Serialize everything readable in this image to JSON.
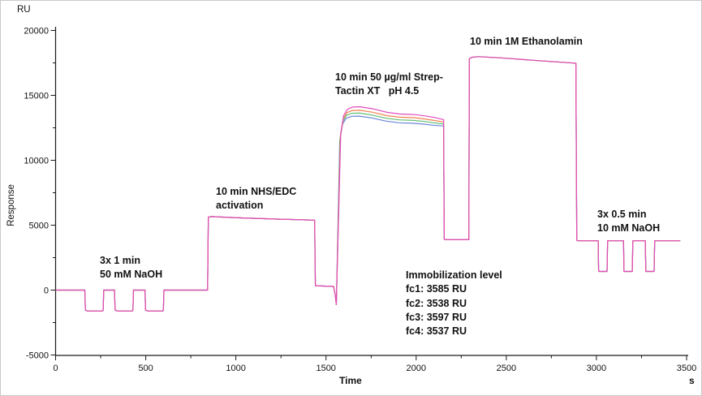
{
  "chart_data": {
    "type": "line",
    "title": "",
    "xlabel": "Time",
    "x_unit": "s",
    "ylabel": "Response",
    "y_unit": "RU",
    "xlim": [
      0,
      3500
    ],
    "ylim": [
      -5000,
      20000
    ],
    "x_ticks": [
      0,
      500,
      1000,
      1500,
      2000,
      2500,
      3000,
      3500
    ],
    "x_minor_step": 250,
    "y_ticks": [
      -5000,
      0,
      5000,
      10000,
      15000,
      20000
    ],
    "y_minor_step": 2500,
    "grid": false,
    "legend_position": "none",
    "axis_color": "#1a1a1a",
    "description": "SPR immobilization sensorgram; four flow-cell curves overlap except during the Strep-Tactin XT capture plateau",
    "common_points_pre": [
      [
        0,
        0
      ],
      [
        162,
        0
      ],
      [
        165,
        -1540
      ],
      [
        178,
        -1610
      ],
      [
        260,
        -1610
      ],
      [
        264,
        -1560
      ],
      [
        267,
        0
      ],
      [
        327,
        0
      ],
      [
        330,
        -1540
      ],
      [
        343,
        -1610
      ],
      [
        425,
        -1610
      ],
      [
        429,
        -1560
      ],
      [
        432,
        0
      ],
      [
        496,
        0
      ],
      [
        499,
        -1540
      ],
      [
        512,
        -1610
      ],
      [
        594,
        -1610
      ],
      [
        598,
        -1560
      ],
      [
        601,
        0
      ],
      [
        843,
        0
      ],
      [
        847,
        5620
      ],
      [
        862,
        5660
      ],
      [
        1010,
        5570
      ],
      [
        1230,
        5470
      ],
      [
        1437,
        5390
      ],
      [
        1441,
        340
      ],
      [
        1470,
        320
      ],
      [
        1542,
        280
      ],
      [
        1551,
        -350
      ],
      [
        1557,
        -1120
      ]
    ],
    "common_points_post": [
      [
        2156,
        3920
      ],
      [
        2159,
        3880
      ],
      [
        2292,
        3880
      ],
      [
        2295,
        17820
      ],
      [
        2308,
        17930
      ],
      [
        2345,
        17980
      ],
      [
        2470,
        17890
      ],
      [
        2650,
        17700
      ],
      [
        2881,
        17480
      ],
      [
        2886,
        17470
      ],
      [
        2891,
        3830
      ],
      [
        2898,
        3800
      ],
      [
        3010,
        3800
      ],
      [
        3012,
        1470
      ],
      [
        3015,
        1440
      ],
      [
        3059,
        1440
      ],
      [
        3062,
        3800
      ],
      [
        3150,
        3800
      ],
      [
        3153,
        1440
      ],
      [
        3199,
        1440
      ],
      [
        3202,
        3800
      ],
      [
        3271,
        3800
      ],
      [
        3274,
        1440
      ],
      [
        3320,
        1440
      ],
      [
        3323,
        3800
      ],
      [
        3465,
        3800
      ]
    ],
    "series": [
      {
        "name": "series-blue",
        "color": "#6b86d8",
        "plateau_points": [
          [
            1576,
            11500
          ],
          [
            1592,
            12800
          ],
          [
            1612,
            13230
          ],
          [
            1642,
            13390
          ],
          [
            1684,
            13400
          ],
          [
            1754,
            13260
          ],
          [
            1834,
            13010
          ],
          [
            1904,
            12890
          ],
          [
            1984,
            12850
          ],
          [
            2044,
            12780
          ],
          [
            2094,
            12700
          ],
          [
            2152,
            12640
          ]
        ]
      },
      {
        "name": "series-green",
        "color": "#63bd74",
        "plateau_points": [
          [
            1578,
            11700
          ],
          [
            1594,
            13000
          ],
          [
            1614,
            13460
          ],
          [
            1644,
            13620
          ],
          [
            1686,
            13630
          ],
          [
            1756,
            13480
          ],
          [
            1836,
            13230
          ],
          [
            1906,
            13110
          ],
          [
            1986,
            13070
          ],
          [
            2046,
            12990
          ],
          [
            2096,
            12890
          ],
          [
            2152,
            12790
          ]
        ]
      },
      {
        "name": "series-orange",
        "color": "#f0824f",
        "plateau_points": [
          [
            1580,
            11900
          ],
          [
            1596,
            13200
          ],
          [
            1616,
            13670
          ],
          [
            1646,
            13840
          ],
          [
            1688,
            13850
          ],
          [
            1758,
            13700
          ],
          [
            1838,
            13440
          ],
          [
            1908,
            13320
          ],
          [
            1988,
            13280
          ],
          [
            2048,
            13180
          ],
          [
            2098,
            13070
          ],
          [
            2152,
            12950
          ]
        ]
      },
      {
        "name": "series-pink",
        "color": "#e24cbe",
        "plateau_points": [
          [
            1582,
            12100
          ],
          [
            1598,
            13450
          ],
          [
            1618,
            13920
          ],
          [
            1648,
            14100
          ],
          [
            1690,
            14120
          ],
          [
            1760,
            13960
          ],
          [
            1840,
            13690
          ],
          [
            1910,
            13560
          ],
          [
            1990,
            13520
          ],
          [
            2050,
            13420
          ],
          [
            2100,
            13300
          ],
          [
            2152,
            13130
          ]
        ]
      }
    ],
    "annotations": [
      {
        "id": "naoh-1",
        "text": "3x 1 min\n50 mM NaOH",
        "t": 246,
        "ru": 2780
      },
      {
        "id": "nhs-edc",
        "text": "10 min NHS/EDC\nactivation",
        "t": 887,
        "ru": 8100
      },
      {
        "id": "strep-tactin",
        "text": "10 min 50 µg/ml Strep-\nTactin XT   pH 4.5",
        "t": 1553,
        "ru": 16900
      },
      {
        "id": "ethanolamine",
        "text": "10 min 1M Ethanolamin",
        "t": 2300,
        "ru": 19650
      },
      {
        "id": "naoh-2",
        "text": "3x 0.5 min\n10 mM NaOH",
        "t": 3004,
        "ru": 6350
      },
      {
        "id": "immobilization",
        "text": "Immobilization level\nfc1: 3585 RU\nfc2: 3538 RU\nfc3: 3597 RU\nfc4: 3537 RU",
        "t": 1944,
        "ru": 1660
      }
    ]
  }
}
